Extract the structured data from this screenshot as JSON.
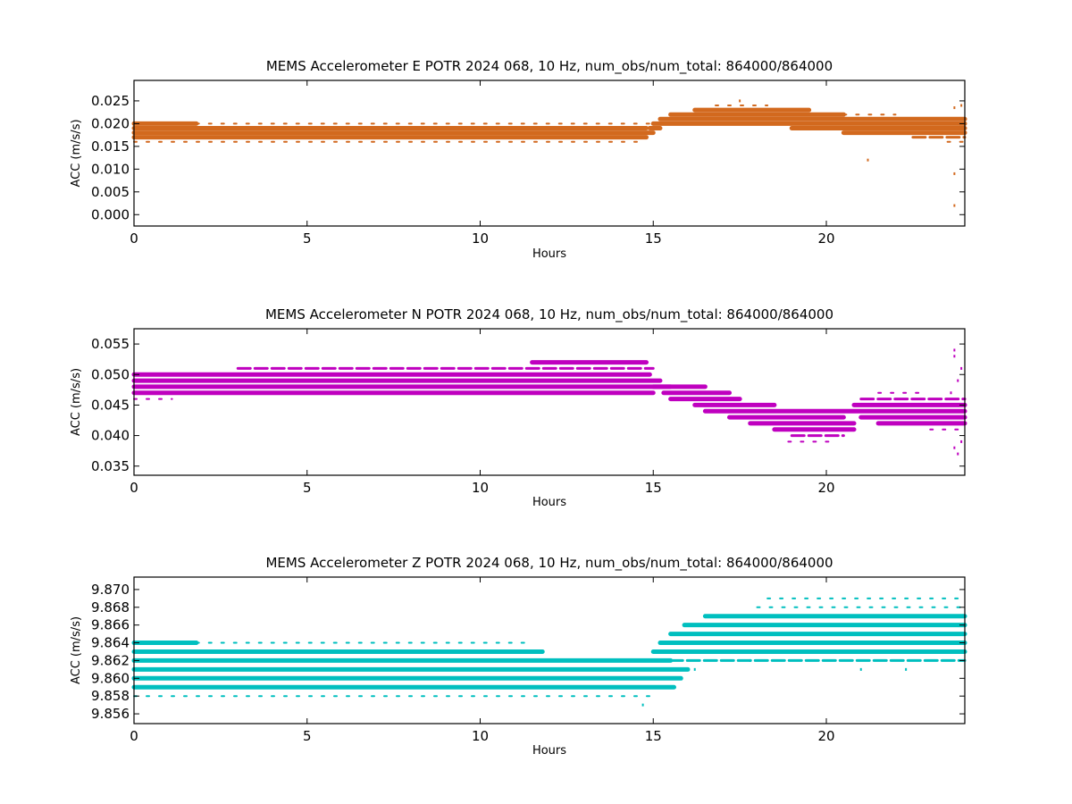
{
  "chart_data": [
    {
      "type": "scatter",
      "title": "MEMS Accelerometer E POTR 2024 068, 10 Hz, num_obs/num_total: 864000/864000",
      "xlabel": "Hours",
      "ylabel": "ACC (m/s/s)",
      "xlim": [
        0,
        24
      ],
      "ylim": [
        -0.0025,
        0.0295
      ],
      "xticks": [
        0,
        5,
        10,
        15,
        20
      ],
      "yticks": [
        0.0,
        0.005,
        0.01,
        0.015,
        0.02,
        0.025
      ],
      "ytick_labels": [
        "0.000",
        "0.005",
        "0.010",
        "0.015",
        "0.020",
        "0.025"
      ],
      "grid": false,
      "color": "#d2691e",
      "series": [
        {
          "values": [
            {
              "x0": 0.0,
              "x1": 14.8,
              "y": 0.016,
              "density": "sparse"
            },
            {
              "x0": 0.0,
              "x1": 14.8,
              "y": 0.017,
              "density": "dense"
            },
            {
              "x0": 0.0,
              "x1": 15.0,
              "y": 0.018,
              "density": "dense"
            },
            {
              "x0": 0.0,
              "x1": 14.8,
              "y": 0.019,
              "density": "dense"
            },
            {
              "x0": 0.0,
              "x1": 1.8,
              "y": 0.02,
              "density": "dense"
            },
            {
              "x0": 1.8,
              "x1": 15.0,
              "y": 0.02,
              "density": "sparse"
            },
            {
              "x0": 14.9,
              "x1": 15.2,
              "y": 0.019,
              "density": "dense"
            },
            {
              "x0": 15.0,
              "x1": 24.0,
              "y": 0.02,
              "density": "dense"
            },
            {
              "x0": 15.2,
              "x1": 24.0,
              "y": 0.021,
              "density": "dense"
            },
            {
              "x0": 15.5,
              "x1": 20.5,
              "y": 0.022,
              "density": "dense"
            },
            {
              "x0": 16.2,
              "x1": 19.5,
              "y": 0.023,
              "density": "dense"
            },
            {
              "x0": 16.8,
              "x1": 18.3,
              "y": 0.024,
              "density": "sparse"
            },
            {
              "x0": 19.0,
              "x1": 24.0,
              "y": 0.019,
              "density": "dense"
            },
            {
              "x0": 20.5,
              "x1": 24.0,
              "y": 0.018,
              "density": "dense"
            },
            {
              "x0": 22.5,
              "x1": 24.0,
              "y": 0.017,
              "density": "medium"
            },
            {
              "x0": 23.5,
              "x1": 24.0,
              "y": 0.016,
              "density": "sparse"
            },
            {
              "x0": 20.5,
              "x1": 22.0,
              "y": 0.022,
              "density": "sparse"
            }
          ]
        }
      ],
      "outliers": [
        [
          21.2,
          0.012
        ],
        [
          23.7,
          0.009
        ],
        [
          23.7,
          0.002
        ],
        [
          23.7,
          0.0235
        ],
        [
          17.5,
          0.025
        ],
        [
          23.9,
          0.024
        ]
      ]
    },
    {
      "type": "scatter",
      "title": "MEMS Accelerometer N POTR 2024 068, 10 Hz, num_obs/num_total: 864000/864000",
      "xlabel": "Hours",
      "ylabel": "ACC (m/s/s)",
      "xlim": [
        0,
        24
      ],
      "ylim": [
        0.0335,
        0.0575
      ],
      "xticks": [
        0,
        5,
        10,
        15,
        20
      ],
      "yticks": [
        0.035,
        0.04,
        0.045,
        0.05,
        0.055
      ],
      "ytick_labels": [
        "0.035",
        "0.040",
        "0.045",
        "0.050",
        "0.055"
      ],
      "grid": false,
      "color": "#bf00bf",
      "series": [
        {
          "values": [
            {
              "x0": 0.0,
              "x1": 1.1,
              "y": 0.046,
              "density": "sparse"
            },
            {
              "x0": 0.0,
              "x1": 15.0,
              "y": 0.047,
              "density": "dense"
            },
            {
              "x0": 0.0,
              "x1": 15.5,
              "y": 0.048,
              "density": "dense"
            },
            {
              "x0": 0.0,
              "x1": 15.2,
              "y": 0.049,
              "density": "dense"
            },
            {
              "x0": 0.0,
              "x1": 14.9,
              "y": 0.05,
              "density": "dense"
            },
            {
              "x0": 3.0,
              "x1": 15.0,
              "y": 0.051,
              "density": "medium"
            },
            {
              "x0": 11.5,
              "x1": 14.8,
              "y": 0.052,
              "density": "dense"
            },
            {
              "x0": 15.0,
              "x1": 16.5,
              "y": 0.048,
              "density": "dense"
            },
            {
              "x0": 15.3,
              "x1": 17.2,
              "y": 0.047,
              "density": "dense"
            },
            {
              "x0": 15.5,
              "x1": 17.5,
              "y": 0.046,
              "density": "dense"
            },
            {
              "x0": 16.2,
              "x1": 18.5,
              "y": 0.045,
              "density": "dense"
            },
            {
              "x0": 16.5,
              "x1": 24.0,
              "y": 0.044,
              "density": "dense"
            },
            {
              "x0": 17.2,
              "x1": 20.5,
              "y": 0.043,
              "density": "dense"
            },
            {
              "x0": 17.8,
              "x1": 20.8,
              "y": 0.042,
              "density": "dense"
            },
            {
              "x0": 18.5,
              "x1": 20.8,
              "y": 0.041,
              "density": "dense"
            },
            {
              "x0": 19.0,
              "x1": 20.5,
              "y": 0.04,
              "density": "medium"
            },
            {
              "x0": 18.9,
              "x1": 20.2,
              "y": 0.039,
              "density": "sparse"
            },
            {
              "x0": 20.8,
              "x1": 24.0,
              "y": 0.045,
              "density": "dense"
            },
            {
              "x0": 21.0,
              "x1": 24.0,
              "y": 0.046,
              "density": "medium"
            },
            {
              "x0": 21.5,
              "x1": 22.8,
              "y": 0.047,
              "density": "sparse"
            },
            {
              "x0": 21.0,
              "x1": 24.0,
              "y": 0.043,
              "density": "dense"
            },
            {
              "x0": 21.5,
              "x1": 24.0,
              "y": 0.042,
              "density": "dense"
            },
            {
              "x0": 23.0,
              "x1": 24.0,
              "y": 0.041,
              "density": "sparse"
            }
          ]
        }
      ],
      "outliers": [
        [
          23.7,
          0.054
        ],
        [
          23.7,
          0.053
        ],
        [
          23.9,
          0.051
        ],
        [
          23.8,
          0.037
        ],
        [
          23.7,
          0.038
        ],
        [
          23.8,
          0.049
        ],
        [
          23.6,
          0.047
        ],
        [
          23.9,
          0.039
        ]
      ]
    },
    {
      "type": "scatter",
      "title": "MEMS Accelerometer Z POTR 2024 068, 10 Hz, num_obs/num_total: 864000/864000",
      "xlabel": "Hours",
      "ylabel": "ACC (m/s/s)",
      "xlim": [
        0,
        24
      ],
      "ylim": [
        9.8549,
        9.8714
      ],
      "xticks": [
        0,
        5,
        10,
        15,
        20
      ],
      "yticks": [
        9.856,
        9.858,
        9.86,
        9.862,
        9.864,
        9.866,
        9.868,
        9.87
      ],
      "ytick_labels": [
        "9.856",
        "9.858",
        "9.860",
        "9.862",
        "9.864",
        "9.866",
        "9.868",
        "9.870"
      ],
      "grid": false,
      "color": "#00bfbf",
      "series": [
        {
          "values": [
            {
              "x0": 0.0,
              "x1": 15.0,
              "y": 9.858,
              "density": "sparse"
            },
            {
              "x0": 0.0,
              "x1": 15.6,
              "y": 9.859,
              "density": "dense"
            },
            {
              "x0": 0.0,
              "x1": 15.8,
              "y": 9.86,
              "density": "dense"
            },
            {
              "x0": 0.0,
              "x1": 16.0,
              "y": 9.861,
              "density": "dense"
            },
            {
              "x0": 0.0,
              "x1": 15.5,
              "y": 9.862,
              "density": "dense"
            },
            {
              "x0": 0.0,
              "x1": 11.8,
              "y": 9.863,
              "density": "dense"
            },
            {
              "x0": 0.0,
              "x1": 1.8,
              "y": 9.864,
              "density": "dense"
            },
            {
              "x0": 1.8,
              "x1": 11.5,
              "y": 9.864,
              "density": "sparse"
            },
            {
              "x0": 11.5,
              "x1": 15.0,
              "y": 9.862,
              "density": "medium"
            },
            {
              "x0": 15.0,
              "x1": 24.0,
              "y": 9.862,
              "density": "medium"
            },
            {
              "x0": 15.0,
              "x1": 24.0,
              "y": 9.863,
              "density": "dense"
            },
            {
              "x0": 15.2,
              "x1": 24.0,
              "y": 9.864,
              "density": "dense"
            },
            {
              "x0": 15.5,
              "x1": 24.0,
              "y": 9.865,
              "density": "dense"
            },
            {
              "x0": 15.9,
              "x1": 24.0,
              "y": 9.866,
              "density": "dense"
            },
            {
              "x0": 16.5,
              "x1": 24.0,
              "y": 9.867,
              "density": "dense"
            },
            {
              "x0": 18.0,
              "x1": 24.0,
              "y": 9.868,
              "density": "sparse"
            },
            {
              "x0": 18.3,
              "x1": 24.0,
              "y": 9.869,
              "density": "sparse"
            }
          ]
        }
      ],
      "outliers": [
        [
          14.7,
          9.857
        ],
        [
          16.2,
          9.861
        ],
        [
          17.8,
          9.862
        ],
        [
          21.0,
          9.861
        ],
        [
          22.3,
          9.861
        ]
      ]
    }
  ]
}
